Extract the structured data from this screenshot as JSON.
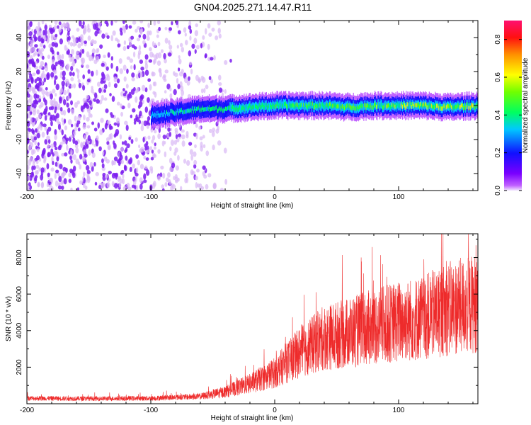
{
  "title": "GN04.2025.271.14.47.R11",
  "colors": {
    "snr_line": "#ee2b2b",
    "background": "#ffffff",
    "axis": "#000000"
  },
  "chart_data": [
    {
      "type": "heatmap",
      "xlabel": "Height of straight line (km)",
      "ylabel": "Frequency (Hz)",
      "xlim": [
        -200,
        164
      ],
      "ylim": [
        -50,
        50
      ],
      "xticks": [
        -200,
        -100,
        0,
        100
      ],
      "yticks": [
        -40,
        -20,
        0,
        20,
        40
      ],
      "grid": false,
      "colorbar": {
        "label": "Normalized spectral amplitude",
        "range": [
          0,
          0.9
        ],
        "ticks": [
          "0.0",
          "0.2",
          "0.4",
          "0.6",
          "0.8"
        ],
        "colormap": "rainbow (magenta at 0 to red/pink at max)"
      },
      "ridge": {
        "start_km": -100,
        "end_km": 164,
        "ridge_frequency_hz": [
          [
            -100,
            -6
          ],
          [
            -90,
            -5
          ],
          [
            -80,
            -4
          ],
          [
            -70,
            -3
          ],
          [
            -60,
            -2
          ],
          [
            -40,
            -2
          ],
          [
            -20,
            -1
          ],
          [
            0,
            0
          ],
          [
            20,
            0
          ],
          [
            40,
            0
          ],
          [
            60,
            -1
          ],
          [
            80,
            0
          ],
          [
            100,
            0
          ],
          [
            120,
            0
          ],
          [
            140,
            -1
          ],
          [
            164,
            0
          ]
        ],
        "half_width_hz": 5
      },
      "noise_region_km": [
        -200,
        -35
      ]
    },
    {
      "type": "line",
      "xlabel": "Height of straight line (km)",
      "ylabel": "SNR (10 * v/v)",
      "xlim": [
        -200,
        164
      ],
      "ylim": [
        0,
        9300
      ],
      "xticks": [
        -200,
        -100,
        0,
        100
      ],
      "yticks": [
        2000,
        4000,
        6000,
        8000
      ],
      "grid": false,
      "series": [
        {
          "trend": [
            [
              -200,
              300
            ],
            [
              -150,
              280
            ],
            [
              -100,
              300
            ],
            [
              -60,
              400
            ],
            [
              -40,
              650
            ],
            [
              -20,
              1100
            ],
            [
              0,
              1700
            ],
            [
              20,
              2800
            ],
            [
              40,
              3600
            ],
            [
              60,
              3900
            ],
            [
              80,
              4200
            ],
            [
              100,
              4500
            ],
            [
              120,
              4700
            ],
            [
              140,
              5200
            ],
            [
              164,
              5500
            ]
          ],
          "max_value": 9300
        }
      ]
    }
  ]
}
